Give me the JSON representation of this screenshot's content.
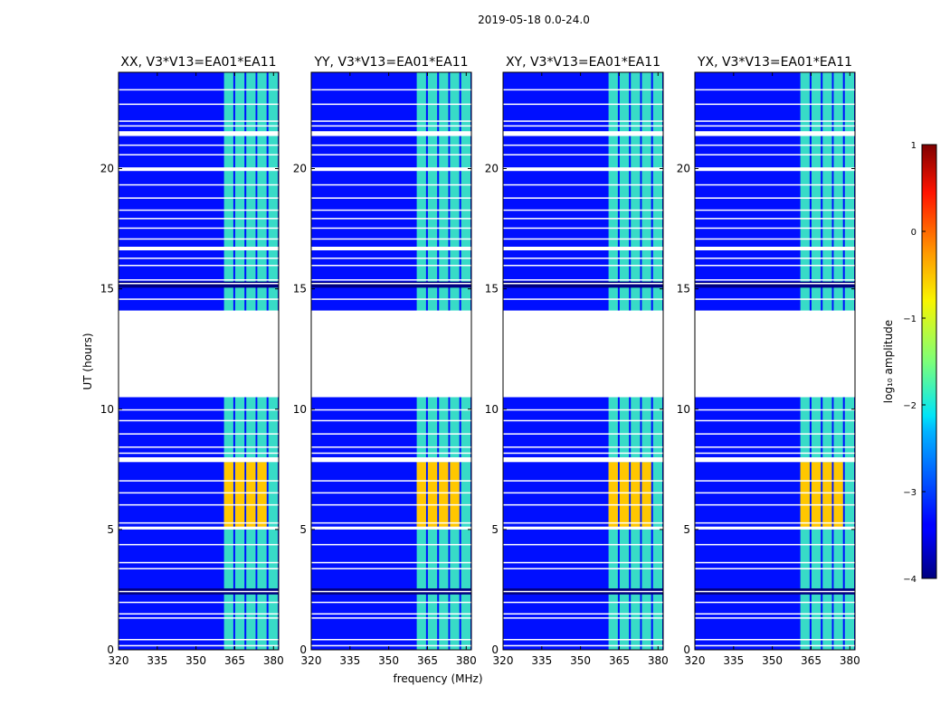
{
  "chart_data": {
    "type": "heatmap",
    "title": "2019-05-18 0.0-24.0",
    "xlabel": "frequency (MHz)",
    "ylabel": "UT (hours)",
    "xlim": [
      320,
      382
    ],
    "ylim": [
      0,
      24
    ],
    "x_ticks": [
      "320",
      "335",
      "350",
      "365",
      "380"
    ],
    "x_tick_values": [
      320,
      335,
      350,
      365,
      380
    ],
    "y_ticks": [
      "0",
      "5",
      "10",
      "15",
      "20"
    ],
    "y_tick_values": [
      0,
      5,
      10,
      15,
      20
    ],
    "panels": [
      {
        "title": "XX, V3*V13=EA01*EA11"
      },
      {
        "title": "YY, V3*V13=EA01*EA11"
      },
      {
        "title": "XY, V3*V13=EA01*EA11"
      },
      {
        "title": "YX, V3*V13=EA01*EA11"
      }
    ],
    "colorbar": {
      "label": "log₁₀ amplitude",
      "range": [
        -4,
        1
      ],
      "ticks": [
        "1",
        "0",
        "−1",
        "−2",
        "−3",
        "−4"
      ],
      "tick_values": [
        1,
        0,
        -1,
        -2,
        -3,
        -4
      ],
      "colormap": "jet"
    },
    "gaps_ut_hours": [
      [
        10.5,
        14.1
      ],
      [
        7.8,
        8.0
      ],
      [
        21.35,
        21.55
      ],
      [
        19.9,
        20.05
      ],
      [
        16.6,
        16.75
      ],
      [
        5.0,
        5.12
      ]
    ],
    "rfi_band_mhz": [
      360.5,
      382
    ],
    "rfi_strong_ut_hours": [
      5.1,
      7.8
    ],
    "background_log_amplitude": -3.3,
    "rfi_log_amplitude": -1.8,
    "rfi_strong_log_amplitude": -0.6
  }
}
